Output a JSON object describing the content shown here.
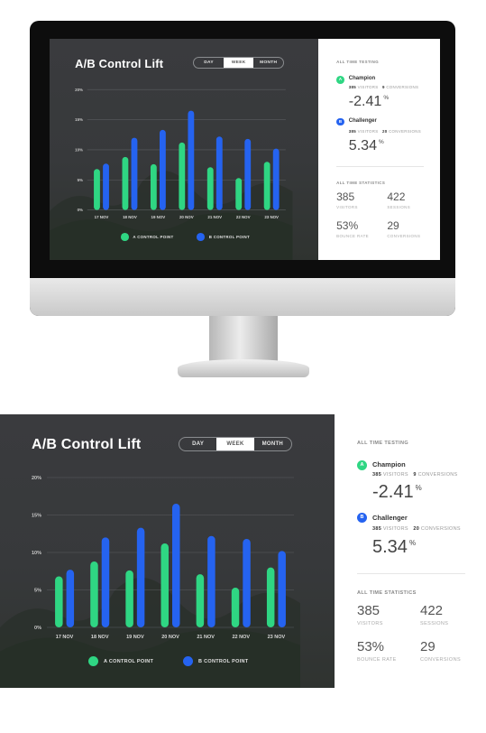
{
  "dashboard": {
    "title": "A/B Control Lift",
    "tabs": [
      "DAY",
      "WEEK",
      "MONTH"
    ],
    "active_tab": "WEEK",
    "legend": [
      {
        "label": "A CONTROL POINT",
        "color": "#2fd683"
      },
      {
        "label": "B CONTROL POINT",
        "color": "#2563f0"
      }
    ]
  },
  "chart_data": {
    "type": "bar",
    "categories": [
      "17 NOV",
      "18 NOV",
      "19 NOV",
      "20 NOV",
      "21 NOV",
      "22 NOV",
      "23 NOV"
    ],
    "series": [
      {
        "name": "A CONTROL POINT",
        "values": [
          6.8,
          8.8,
          7.6,
          11.2,
          7.1,
          5.3,
          8.0
        ]
      },
      {
        "name": "B CONTROL POINT",
        "values": [
          7.7,
          12.0,
          13.3,
          16.5,
          12.2,
          11.8,
          10.2
        ]
      }
    ],
    "yticks": [
      "0%",
      "5%",
      "10%",
      "15%",
      "20%"
    ],
    "ylim": [
      0,
      20
    ],
    "grid": true
  },
  "panel": {
    "testing_heading": "ALL TIME TESTING",
    "champion": {
      "badge": "A",
      "name": "Champion",
      "visitors": "385",
      "visitors_label": "VISITORS",
      "conversions": "9",
      "conversions_label": "CONVERSIONS",
      "lift": "-2.41",
      "unit": "%"
    },
    "challenger": {
      "badge": "B",
      "name": "Challenger",
      "visitors": "385",
      "visitors_label": "VISITORS",
      "conversions": "20",
      "conversions_label": "CONVERSIONS",
      "lift": "5.34",
      "unit": "%"
    },
    "stats_heading": "ALL TIME STATISTICS",
    "stats": [
      {
        "value": "385",
        "label": "VISITORS"
      },
      {
        "value": "422",
        "label": "SESSIONS"
      },
      {
        "value": "53%",
        "label": "BOUNCE RATE"
      },
      {
        "value": "29",
        "label": "CONVERSIONS"
      }
    ],
    "colors": {
      "a": "#2fd683",
      "b": "#2563f0"
    }
  }
}
